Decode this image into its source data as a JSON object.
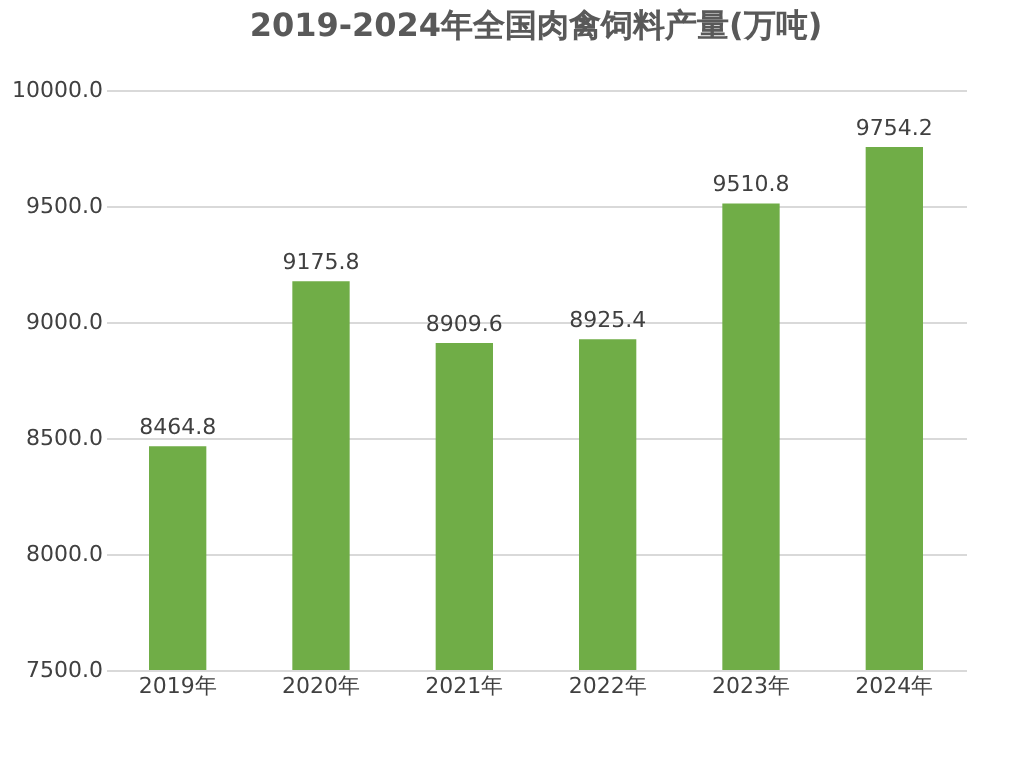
{
  "chart_data": {
    "type": "bar",
    "title": "2019-2024年全国肉禽饲料产量(万吨)",
    "categories": [
      "2019年",
      "2020年",
      "2021年",
      "2022年",
      "2023年",
      "2024年"
    ],
    "values": [
      8464.8,
      9175.8,
      8909.6,
      8925.4,
      9510.8,
      9754.2
    ],
    "color": "#70ad47",
    "ylim": [
      7500,
      10000
    ],
    "yticks": [
      {
        "value": 7500,
        "label": "7500.0"
      },
      {
        "value": 8000,
        "label": "8000.0"
      },
      {
        "value": 8500,
        "label": "8500.0"
      },
      {
        "value": 9000,
        "label": "9000.0"
      },
      {
        "value": 9500,
        "label": "9500.0"
      },
      {
        "value": 10000,
        "label": "10000.0"
      }
    ],
    "grid": "y",
    "data_labels": true
  }
}
